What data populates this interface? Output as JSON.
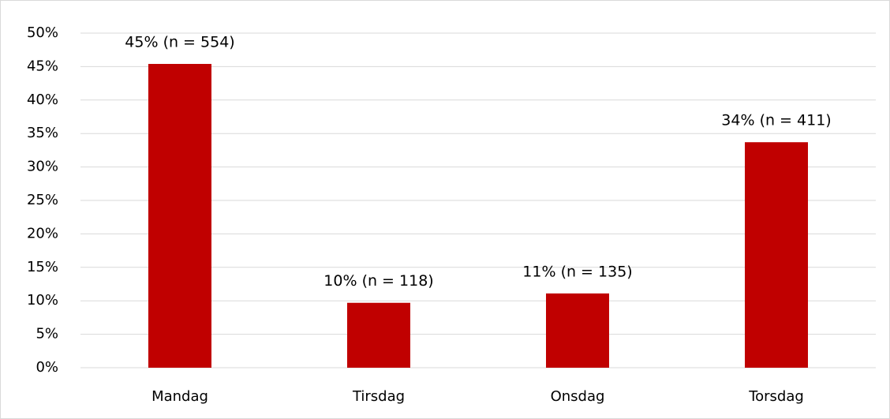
{
  "chart_data": {
    "type": "bar",
    "categories": [
      "Mandag",
      "Tirsdag",
      "Onsdag",
      "Torsdag"
    ],
    "values": [
      45.4,
      9.7,
      11.1,
      33.7
    ],
    "value_labels": [
      "45% (n = 554)",
      "10% (n = 118)",
      "11% (n = 135)",
      "34% (n = 411)"
    ],
    "color": "#c00000",
    "ylim": [
      0,
      50
    ],
    "yticks": [
      {
        "value": 0,
        "label": "0%"
      },
      {
        "value": 5,
        "label": "5%"
      },
      {
        "value": 10,
        "label": "10%"
      },
      {
        "value": 15,
        "label": "15%"
      },
      {
        "value": 20,
        "label": "20%"
      },
      {
        "value": 25,
        "label": "25%"
      },
      {
        "value": 30,
        "label": "30%"
      },
      {
        "value": 35,
        "label": "35%"
      },
      {
        "value": 40,
        "label": "40%"
      },
      {
        "value": 45,
        "label": "45%"
      },
      {
        "value": 50,
        "label": "50%"
      }
    ],
    "grid": true
  }
}
